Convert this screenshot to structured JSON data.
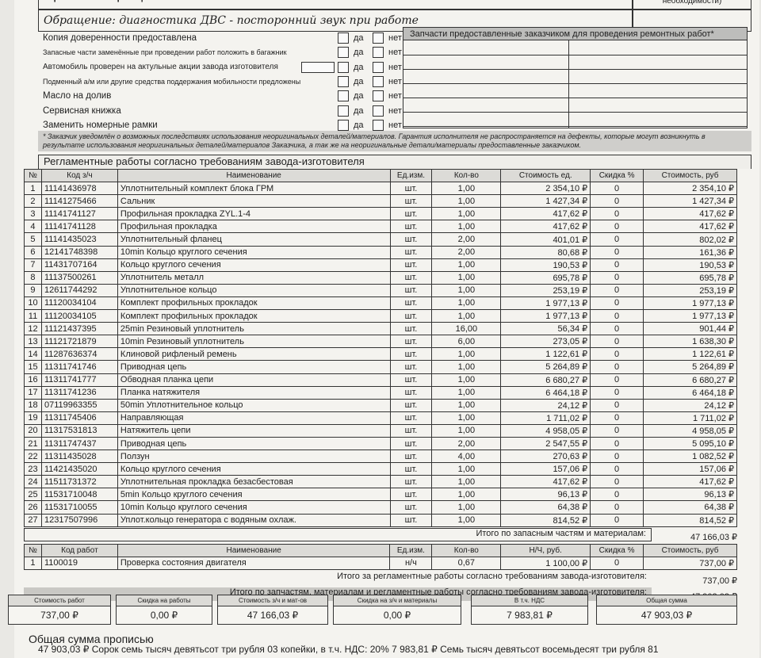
{
  "header": {
    "title": "Причина обращения со слов заказчика",
    "corner_text": "пробной поездки (при необходимости)"
  },
  "complaint": "Обращение: диагностика ДВС - посторонний звук при работе",
  "checklist": {
    "yes": "да",
    "no": "нет",
    "items": [
      "Копия доверенности предоставлена",
      "Запасные части заменённые при проведении работ положить в багажник",
      "Автомобиль проверен на актульные акции завода изготовителя",
      "Подменный а/м или другие средства поддержания мобильности предложены",
      "Масло на долив",
      "Сервисная книжка",
      "Заменить номерные рамки"
    ]
  },
  "customer_parts_header": "Запчасти предоставленные заказчиком для проведения ремонтных работ*",
  "note": "* Заказчик уведомлён о возможных последствиях использования неоригинальных деталей/материалов. Гарантия исполнителя не распространяется на дефекты, которые могут возникнуть в результате использования неоригинальных деталей/материалов Заказчика, а так же на неоригинальные детали/материалы предоставленные заказчиком.",
  "parts_section": {
    "title": "Регламентные работы согласно требованиям завода-изготовителя",
    "columns": [
      "№",
      "Код з/ч",
      "Наименование",
      "Ед.изм.",
      "Кол-во",
      "Стоимость ед.",
      "Скидка %",
      "Стоимость, руб"
    ],
    "rows": [
      [
        "1",
        "11141436978",
        "Уплотнительный комплект блока ГРМ",
        "шт.",
        "1,00",
        "2 354,10 ₽",
        "0",
        "2 354,10 ₽"
      ],
      [
        "2",
        "11141275466",
        "Сальник",
        "шт.",
        "1,00",
        "1 427,34 ₽",
        "0",
        "1 427,34 ₽"
      ],
      [
        "3",
        "11141741127",
        "Профильная прокладка ZYL.1-4",
        "шт.",
        "1,00",
        "417,62 ₽",
        "0",
        "417,62 ₽"
      ],
      [
        "4",
        "11141741128",
        "Профильная прокладка",
        "шт.",
        "1,00",
        "417,62 ₽",
        "0",
        "417,62 ₽"
      ],
      [
        "5",
        "11141435023",
        "Уплотнительный фланец",
        "шт.",
        "2,00",
        "401,01 ₽",
        "0",
        "802,02 ₽"
      ],
      [
        "6",
        "12141748398",
        "10min Кольцо круглого сечения",
        "шт.",
        "2,00",
        "80,68 ₽",
        "0",
        "161,36 ₽"
      ],
      [
        "7",
        "11431707164",
        "Кольцо круглого сечения",
        "шт.",
        "1,00",
        "190,53 ₽",
        "0",
        "190,53 ₽"
      ],
      [
        "8",
        "11137500261",
        "Уплотнитель металл",
        "шт.",
        "1,00",
        "695,78 ₽",
        "0",
        "695,78 ₽"
      ],
      [
        "9",
        "12611744292",
        "Уплотнительное кольцо",
        "шт.",
        "1,00",
        "253,19 ₽",
        "0",
        "253,19 ₽"
      ],
      [
        "10",
        "11120034104",
        "Комплект профильных прокладок",
        "шт.",
        "1,00",
        "1 977,13 ₽",
        "0",
        "1 977,13 ₽"
      ],
      [
        "11",
        "11120034105",
        "Комплект профильных прокладок",
        "шт.",
        "1,00",
        "1 977,13 ₽",
        "0",
        "1 977,13 ₽"
      ],
      [
        "12",
        "11121437395",
        "25min Резиновый уплотнитель",
        "шт.",
        "16,00",
        "56,34 ₽",
        "0",
        "901,44 ₽"
      ],
      [
        "13",
        "11121721879",
        "10min Резиновый уплотнитель",
        "шт.",
        "6,00",
        "273,05 ₽",
        "0",
        "1 638,30 ₽"
      ],
      [
        "14",
        "11287636374",
        "Клиновой рифленый ремень",
        "шт.",
        "1,00",
        "1 122,61 ₽",
        "0",
        "1 122,61 ₽"
      ],
      [
        "15",
        "11311741746",
        "Приводная цепь",
        "шт.",
        "1,00",
        "5 264,89 ₽",
        "0",
        "5 264,89 ₽"
      ],
      [
        "16",
        "11311741777",
        "Обводная планка цепи",
        "шт.",
        "1,00",
        "6 680,27 ₽",
        "0",
        "6 680,27 ₽"
      ],
      [
        "17",
        "11311741236",
        "Планка натяжителя",
        "шт.",
        "1,00",
        "6 464,18 ₽",
        "0",
        "6 464,18 ₽"
      ],
      [
        "18",
        "07119963355",
        "50min Уплотнительное кольцо",
        "шт.",
        "1,00",
        "24,12 ₽",
        "0",
        "24,12 ₽"
      ],
      [
        "19",
        "11311745406",
        "Направляющая",
        "шт.",
        "1,00",
        "1 711,02 ₽",
        "0",
        "1 711,02 ₽"
      ],
      [
        "20",
        "11317531813",
        "Натяжитель цепи",
        "шт.",
        "1,00",
        "4 958,05 ₽",
        "0",
        "4 958,05 ₽"
      ],
      [
        "21",
        "11311747437",
        "Приводная цепь",
        "шт.",
        "2,00",
        "2 547,55 ₽",
        "0",
        "5 095,10 ₽"
      ],
      [
        "22",
        "11311435028",
        "Ползун",
        "шт.",
        "4,00",
        "270,63 ₽",
        "0",
        "1 082,52 ₽"
      ],
      [
        "23",
        "11421435020",
        "Кольцо круглого сечения",
        "шт.",
        "1,00",
        "157,06 ₽",
        "0",
        "157,06 ₽"
      ],
      [
        "24",
        "11511731372",
        "Уплотнительная прокладка безасбестовая",
        "шт.",
        "1,00",
        "417,62 ₽",
        "0",
        "417,62 ₽"
      ],
      [
        "25",
        "11531710048",
        "5min Кольцо круглого сечения",
        "шт.",
        "1,00",
        "96,13 ₽",
        "0",
        "96,13 ₽"
      ],
      [
        "26",
        "11531710055",
        "10min Кольцо круглого сечения",
        "шт.",
        "1,00",
        "64,38 ₽",
        "0",
        "64,38 ₽"
      ],
      [
        "27",
        "12317507996",
        "Уплот.кольцо генератора с водяным охлаж.",
        "шт.",
        "1,00",
        "814,52 ₽",
        "0",
        "814,52 ₽"
      ]
    ],
    "total_label": "Итого по запасным частям и материалам:",
    "total": "47 166,03 ₽"
  },
  "labor_section": {
    "columns": [
      "№",
      "Код работ",
      "Наименование",
      "Ед.изм.",
      "Кол-во",
      "Н/Ч, руб.",
      "Скидка %",
      "Стоимость, руб"
    ],
    "rows": [
      [
        "1",
        "1100019",
        "Проверка состояния двигателя",
        "н/ч",
        "0,67",
        "1 100,00 ₽",
        "0",
        "737,00 ₽"
      ]
    ],
    "total_label": "Итого за регламентные работы согласно требованиям завода-изготовителя:",
    "total": "737,00 ₽",
    "grand_label": "Итого по запчастям, материалам и регламентные работы согласно требованиям завода-изготовителя:",
    "grand": "47 903,03 ₽"
  },
  "summary": [
    {
      "label": "Стоимость работ",
      "value": "737,00 ₽"
    },
    {
      "label": "Скидка на работы",
      "value": "0,00 ₽"
    },
    {
      "label": "Стоимость з/ч и мат-ов",
      "value": "47 166,03 ₽"
    },
    {
      "label": "Скидка на з/ч и материалы",
      "value": "0,00 ₽"
    },
    {
      "label": "В т.ч. НДС",
      "value": "7 983,81 ₽"
    },
    {
      "label": "Общая сумма",
      "value": "47 903,03 ₽"
    }
  ],
  "words": {
    "title": "Общая сумма прописью",
    "text": "47 903,03 ₽ Сорок семь тысяч девятьсот три рубля 03 копейки, в т.ч. НДС: 20% 7 983,81 ₽ Семь тысяч девятьсот восемьдесят три рубля 81"
  }
}
